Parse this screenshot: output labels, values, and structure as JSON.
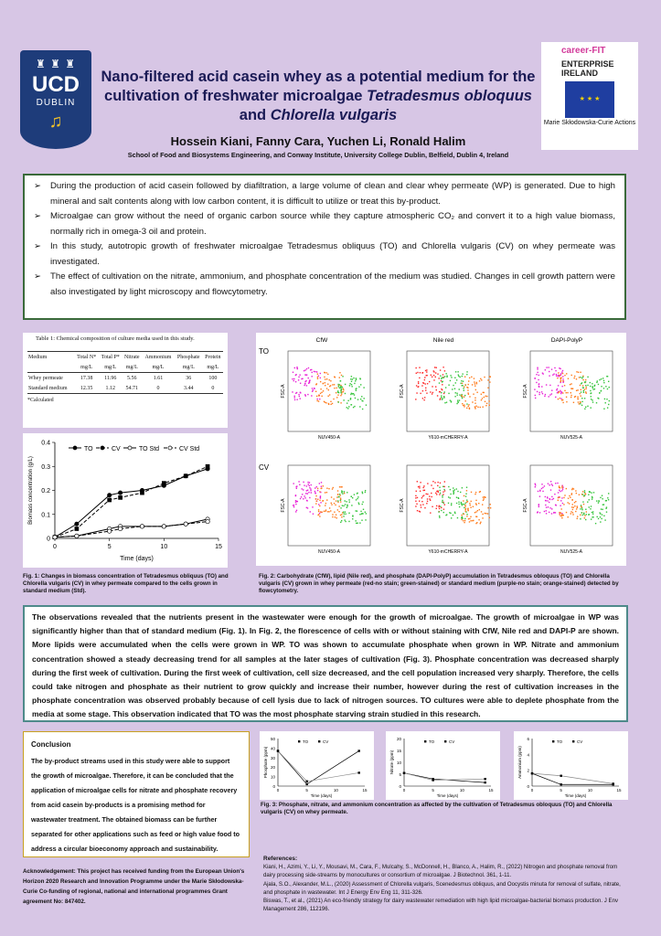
{
  "logo": {
    "top": "♜ ♜ ♜",
    "name": "UCD",
    "city": "DUBLIN",
    "harp": "♫"
  },
  "sponsor": {
    "careerfit": "career-FIT",
    "ei1": "ENTERPRISE",
    "ei2": "IRELAND",
    "msca": "Marie Skłodowska-Curie Actions"
  },
  "title_plain": "Nano-filtered acid casein whey as a potential medium for the cultivation of freshwater microalgae ",
  "title_italic_1": "Tetradesmus obloquus",
  "title_and": " and ",
  "title_italic_2": "Chlorella vulgaris",
  "authors": "Hossein Kiani, Fanny Cara, Yuchen Li, Ronald Halim",
  "affiliation": "School of Food and Biosystems Engineering, and Conway Institute, University College Dublin, Belfield, Dublin 4, Ireland",
  "intro": [
    "During the production of acid casein followed by diafiltration, a large volume of clean and clear whey permeate (WP) is generated. Due to high mineral and salt contents along with low carbon content, it is difficult to utilize or treat this by-product.",
    "Microalgae can grow without the need of organic carbon source while they capture atmospheric CO₂ and convert it to a high value biomass, normally rich in omega-3 oil and protein.",
    "In this study, autotropic growth of freshwater microalgae Tetradesmus obliquus (TO) and Chlorella vulgaris (CV) on whey permeate was investigated.",
    "The effect of cultivation on the nitrate, ammonium, and phosphate concentration of the medium was studied. Changes in cell growth pattern were also investigated by light microscopy and flowcytometry."
  ],
  "table1": {
    "caption": "Table 1: Chemical composition of culture media used in this study.",
    "headers": [
      "Medium",
      "Total N*",
      "Total P*",
      "Nitrate",
      "Ammonium",
      "Phosphate",
      "Protein"
    ],
    "units": [
      "",
      "mg/L",
      "mg/L",
      "mg/L",
      "mg/L",
      "mg/L",
      "mg/L"
    ],
    "rows": [
      [
        "Whey permeate",
        "17.38",
        "11.96",
        "5.56",
        "1.61",
        "36",
        "100"
      ],
      [
        "Standard medium",
        "12.35",
        "1.12",
        "54.71",
        "0",
        "3.44",
        "0"
      ]
    ],
    "note": "*Calculated"
  },
  "chart_data": [
    {
      "type": "line",
      "xlabel": "Time (days)",
      "ylabel": "Biomass concentration (g/L)",
      "xlim": [
        0,
        15
      ],
      "ylim": [
        0,
        0.4
      ],
      "xticks": [
        "0",
        "5",
        "10",
        "15"
      ],
      "yticks": [
        "0",
        "0.1",
        "0.2",
        "0.3",
        "0.4"
      ],
      "x": [
        0,
        2,
        5,
        6,
        8,
        10,
        12,
        14
      ],
      "series": [
        {
          "name": "TO",
          "values": [
            0.005,
            0.06,
            0.18,
            0.19,
            0.2,
            0.22,
            0.26,
            0.29
          ]
        },
        {
          "name": "CV",
          "values": [
            0.005,
            0.04,
            0.16,
            0.17,
            0.19,
            0.23,
            0.26,
            0.3
          ]
        },
        {
          "name": "TO Std",
          "values": [
            0.005,
            0.01,
            0.04,
            0.05,
            0.05,
            0.05,
            0.06,
            0.08
          ]
        },
        {
          "name": "CV Std",
          "values": [
            0.005,
            0.01,
            0.03,
            0.04,
            0.05,
            0.05,
            0.06,
            0.07
          ]
        }
      ],
      "legend": "top"
    },
    {
      "type": "line",
      "ylabel": "Phosphate (ppm)",
      "xlabel": "Time (days)",
      "xlim": [
        0,
        15
      ],
      "ylim": [
        0,
        50
      ],
      "x": [
        0,
        5,
        14
      ],
      "series": [
        {
          "name": "TO",
          "values": [
            37,
            2,
            37
          ]
        },
        {
          "name": "CV",
          "values": [
            37,
            5,
            14
          ]
        }
      ]
    },
    {
      "type": "line",
      "ylabel": "Nitrate (ppm)",
      "xlabel": "Time (days)",
      "xlim": [
        0,
        15
      ],
      "ylim": [
        0,
        20
      ],
      "x": [
        0,
        5,
        14
      ],
      "series": [
        {
          "name": "TO",
          "values": [
            5.5,
            3,
            1.5
          ]
        },
        {
          "name": "CV",
          "values": [
            5.5,
            2.5,
            3
          ]
        }
      ]
    },
    {
      "type": "line",
      "ylabel": "Ammonium (ppm)",
      "xlabel": "Time (days)",
      "xlim": [
        0,
        15
      ],
      "ylim": [
        0,
        6
      ],
      "x": [
        0,
        5,
        14
      ],
      "series": [
        {
          "name": "TO",
          "values": [
            1.6,
            0.2,
            0.2
          ]
        },
        {
          "name": "CV",
          "values": [
            1.6,
            1.3,
            0.3
          ]
        }
      ]
    }
  ],
  "flow": {
    "cols": [
      "CfW",
      "Nile red",
      "DAPI-PolyP"
    ],
    "rows": [
      "TO",
      "CV"
    ],
    "xlabels": [
      "NUV450-A",
      "Y610-mCHERRY-A",
      "NUV525-A"
    ],
    "ylabels": [
      "FSC-A",
      "FSC-A",
      "FSC-A"
    ]
  },
  "fig1_caption": "Fig. 1: Changes in biomass concentration of Tetradesmus obliquus (TO) and Chlorella vulgaris (CV) in whey permeate compared to the cells grown in standard medium (Std).",
  "fig2_caption": "Fig. 2: Carbohydrate (CfW), lipid (Nile red), and phosphate (DAPI-PolyP) accumulation in Tetradesmus obloquus (TO) and Chlorella vulgaris (CV) grown in whey permeate (red-no stain; green-stained) or standard medium (purple-no stain; orange-stained) detected by flowcytometry.",
  "observations": "The observations revealed that the nutrients present in the wastewater were enough for the growth of microalgae. The growth of microalgae in WP was significantly higher than that of standard medium (Fig. 1). In Fig. 2, the florescence of cells with or without staining with CfW, Nile red and DAPI-P are shown. More lipids were accumulated when the cells were grown in WP. TO was shown to accumulate phosphate when grown in WP. Nitrate and ammonium concentration showed a steady decreasing trend for all samples at the later stages of cultivation (Fig. 3). Phosphate concentration was decreased sharply during the first week of cultivation. During the first week of cultivation, cell size decreased, and the cell population increased very sharply. Therefore, the cells could take nitrogen and phosphate as their nutrient to grow quickly and increase their number, however during the rest of cultivation increases in the phosphate concentration was observed probably because of cell lysis due to lack of nitrogen sources. TO cultures were able to deplete phosphate from the media at some stage. This observation indicated that TO was the most phosphate starving strain studied in this research.",
  "conclusion_title": "Conclusion",
  "conclusion": "The by-product streams used in this study were able to support the growth of microalgae. Therefore, it can be concluded that the application of microalgae cells for nitrate and phosphate recovery from acid casein by-products is a promising method for wastewater treatment. The obtained biomass can be further separated for other applications such as feed or high value food to address a circular bioeconomy approach and sustainability.",
  "fig3_caption": "Fig. 3: Phosphate, nitrate, and ammonium concentration as affected by the cultivation of Tetradesmus obloquus (TO) and Chlorella vulgaris (CV) on whey permeate.",
  "ack": "Acknowledgement: This project has received funding from the European Union's Horizon 2020 Research and Innovation Programme under the Marie Skłodowska-Curie Co-funding of regional, national and international programmes Grant agreement No: 847402.",
  "refs_title": "References:",
  "refs": [
    "Kiani, H., Azimi, Y., Li, Y., Mousavi, M., Cara, F., Mulcahy, S., McDonnell, H., Blanco, A., Halim, R., (2022) Nitrogen and phosphate removal from dairy processing side-streams by monocultures or consortium of microalgae. J Biotechnol. 361, 1-11.",
    "Ajala, S.O., Alexander, M.L., (2020) Assessment of Chlorella vulgaris, Scenedesmus obliquus, and Oocystis minuta for removal of sulfate, nitrate, and phosphate in wastewater. Int J Energy Env Eng 11, 311-326.",
    "Biswas, T., et al., (2021) An eco-friendly strategy for dairy wastewater remediation with high lipid microalgae-bacterial biomass production. J Env Management 286, 112196."
  ],
  "colors": {
    "bg": "#d7c6e5",
    "title": "#1a1a55",
    "ucd": "#1e3c7a",
    "intro_border": "#3a6a3a",
    "obs_border": "#4e8a8a",
    "concl_border": "#c8a020"
  }
}
